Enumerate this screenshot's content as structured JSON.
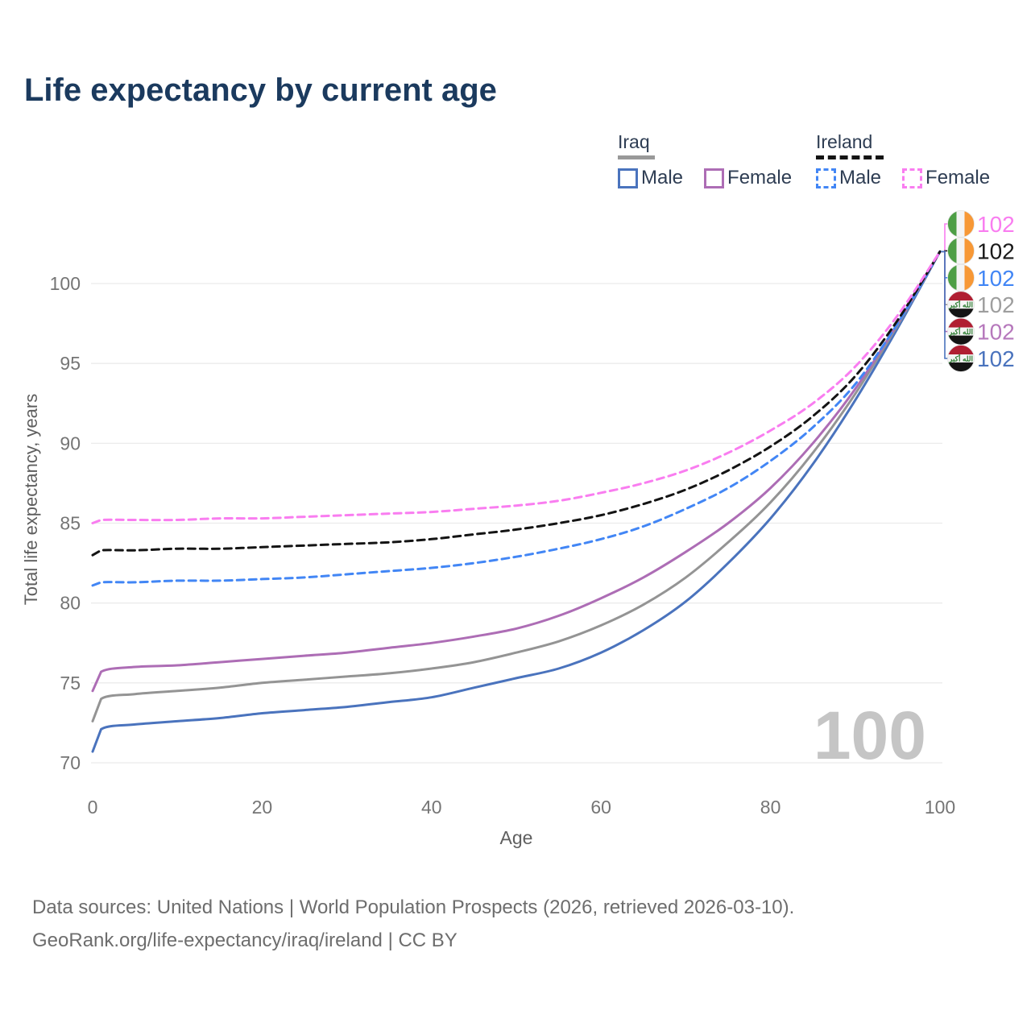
{
  "title": "Life expectancy by current age",
  "legend": {
    "groups": [
      {
        "name": "Iraq",
        "line_style": "solid",
        "underline_color": "#999999",
        "underline_width": 46,
        "items": [
          {
            "label": "Male",
            "color": "#4a73bd"
          },
          {
            "label": "Female",
            "color": "#ad6db5"
          }
        ]
      },
      {
        "name": "Ireland",
        "line_style": "dashed",
        "underline_color": "#141414",
        "underline_width": 84,
        "items": [
          {
            "label": "Male",
            "color": "#4286f5"
          },
          {
            "label": "Female",
            "color": "#f97df0"
          }
        ]
      }
    ]
  },
  "chart_data": {
    "type": "line",
    "title": "Life expectancy by current age",
    "xlabel": "Age",
    "ylabel": "Total life expectancy, years",
    "x_ticks": [
      0,
      20,
      40,
      60,
      80,
      100
    ],
    "y_ticks": [
      70,
      75,
      80,
      85,
      90,
      95,
      100
    ],
    "xlim": [
      0,
      100
    ],
    "ylim": [
      69,
      103
    ],
    "grid": "horizontal-only",
    "legend_position": "top-right",
    "watermark_age": "100",
    "ages": [
      0,
      1,
      5,
      10,
      15,
      20,
      25,
      30,
      35,
      40,
      45,
      50,
      55,
      60,
      65,
      70,
      75,
      80,
      85,
      90,
      95,
      100
    ],
    "series": [
      {
        "id": "iraq_male",
        "name": "Iraq Male",
        "country": "iraq",
        "sex": "male",
        "color": "#4a73bd",
        "dash": false,
        "values": [
          70.7,
          72.1,
          72.4,
          72.6,
          72.8,
          73.1,
          73.3,
          73.5,
          73.8,
          74.1,
          74.7,
          75.3,
          75.9,
          76.9,
          78.3,
          80.1,
          82.5,
          85.3,
          88.7,
          92.7,
          97.2,
          102
        ]
      },
      {
        "id": "iraq_both",
        "name": "Iraq Both sexes",
        "country": "iraq",
        "sex": "both",
        "color": "#949494",
        "dash": false,
        "values": [
          72.6,
          74.0,
          74.3,
          74.5,
          74.7,
          75.0,
          75.2,
          75.4,
          75.6,
          75.9,
          76.3,
          76.9,
          77.6,
          78.6,
          79.9,
          81.6,
          83.8,
          86.3,
          89.4,
          93.1,
          97.4,
          102
        ]
      },
      {
        "id": "iraq_female",
        "name": "Iraq Female",
        "country": "iraq",
        "sex": "female",
        "color": "#ad6db5",
        "dash": false,
        "values": [
          74.5,
          75.7,
          76.0,
          76.1,
          76.3,
          76.5,
          76.7,
          76.9,
          77.2,
          77.5,
          77.9,
          78.4,
          79.2,
          80.3,
          81.6,
          83.2,
          85.0,
          87.2,
          90.0,
          93.4,
          97.5,
          102
        ]
      },
      {
        "id": "ireland_male",
        "name": "Ireland Male",
        "country": "ireland",
        "sex": "male",
        "color": "#4286f5",
        "dash": true,
        "values": [
          81.1,
          81.3,
          81.3,
          81.4,
          81.4,
          81.5,
          81.6,
          81.8,
          82.0,
          82.2,
          82.5,
          82.9,
          83.4,
          84.0,
          84.8,
          85.9,
          87.2,
          88.9,
          91.0,
          93.7,
          97.5,
          102
        ]
      },
      {
        "id": "ireland_both",
        "name": "Ireland Both sexes",
        "country": "ireland",
        "sex": "both",
        "color": "#141414",
        "dash": true,
        "values": [
          83.0,
          83.3,
          83.3,
          83.4,
          83.4,
          83.5,
          83.6,
          83.7,
          83.8,
          84.0,
          84.3,
          84.6,
          85.0,
          85.5,
          86.2,
          87.1,
          88.3,
          89.8,
          91.7,
          94.2,
          97.7,
          102
        ]
      },
      {
        "id": "ireland_female",
        "name": "Ireland Female",
        "country": "ireland",
        "sex": "female",
        "color": "#f97df0",
        "dash": true,
        "values": [
          85.0,
          85.2,
          85.2,
          85.2,
          85.3,
          85.3,
          85.4,
          85.5,
          85.6,
          85.7,
          85.9,
          86.1,
          86.4,
          86.9,
          87.5,
          88.3,
          89.4,
          90.8,
          92.5,
          94.8,
          98.0,
          102
        ]
      }
    ],
    "end_labels": [
      {
        "series": "ireland_female",
        "value": "102",
        "text_color": "#f97df0"
      },
      {
        "series": "ireland_both",
        "value": "102",
        "text_color": "#1a1a1a"
      },
      {
        "series": "ireland_male",
        "value": "102",
        "text_color": "#4286f5"
      },
      {
        "series": "iraq_both",
        "value": "102",
        "text_color": "#9e9e9e"
      },
      {
        "series": "iraq_female",
        "value": "102",
        "text_color": "#b678bc"
      },
      {
        "series": "iraq_male",
        "value": "102",
        "text_color": "#4a73bd"
      }
    ],
    "flag_text": {
      "iraq_takbir": "الله أكبر"
    }
  },
  "footer": {
    "line1": "Data sources: United Nations | World Population Prospects (2026, retrieved 2026-03-10).",
    "line2": "GeoRank.org/life-expectancy/iraq/ireland | CC BY"
  }
}
